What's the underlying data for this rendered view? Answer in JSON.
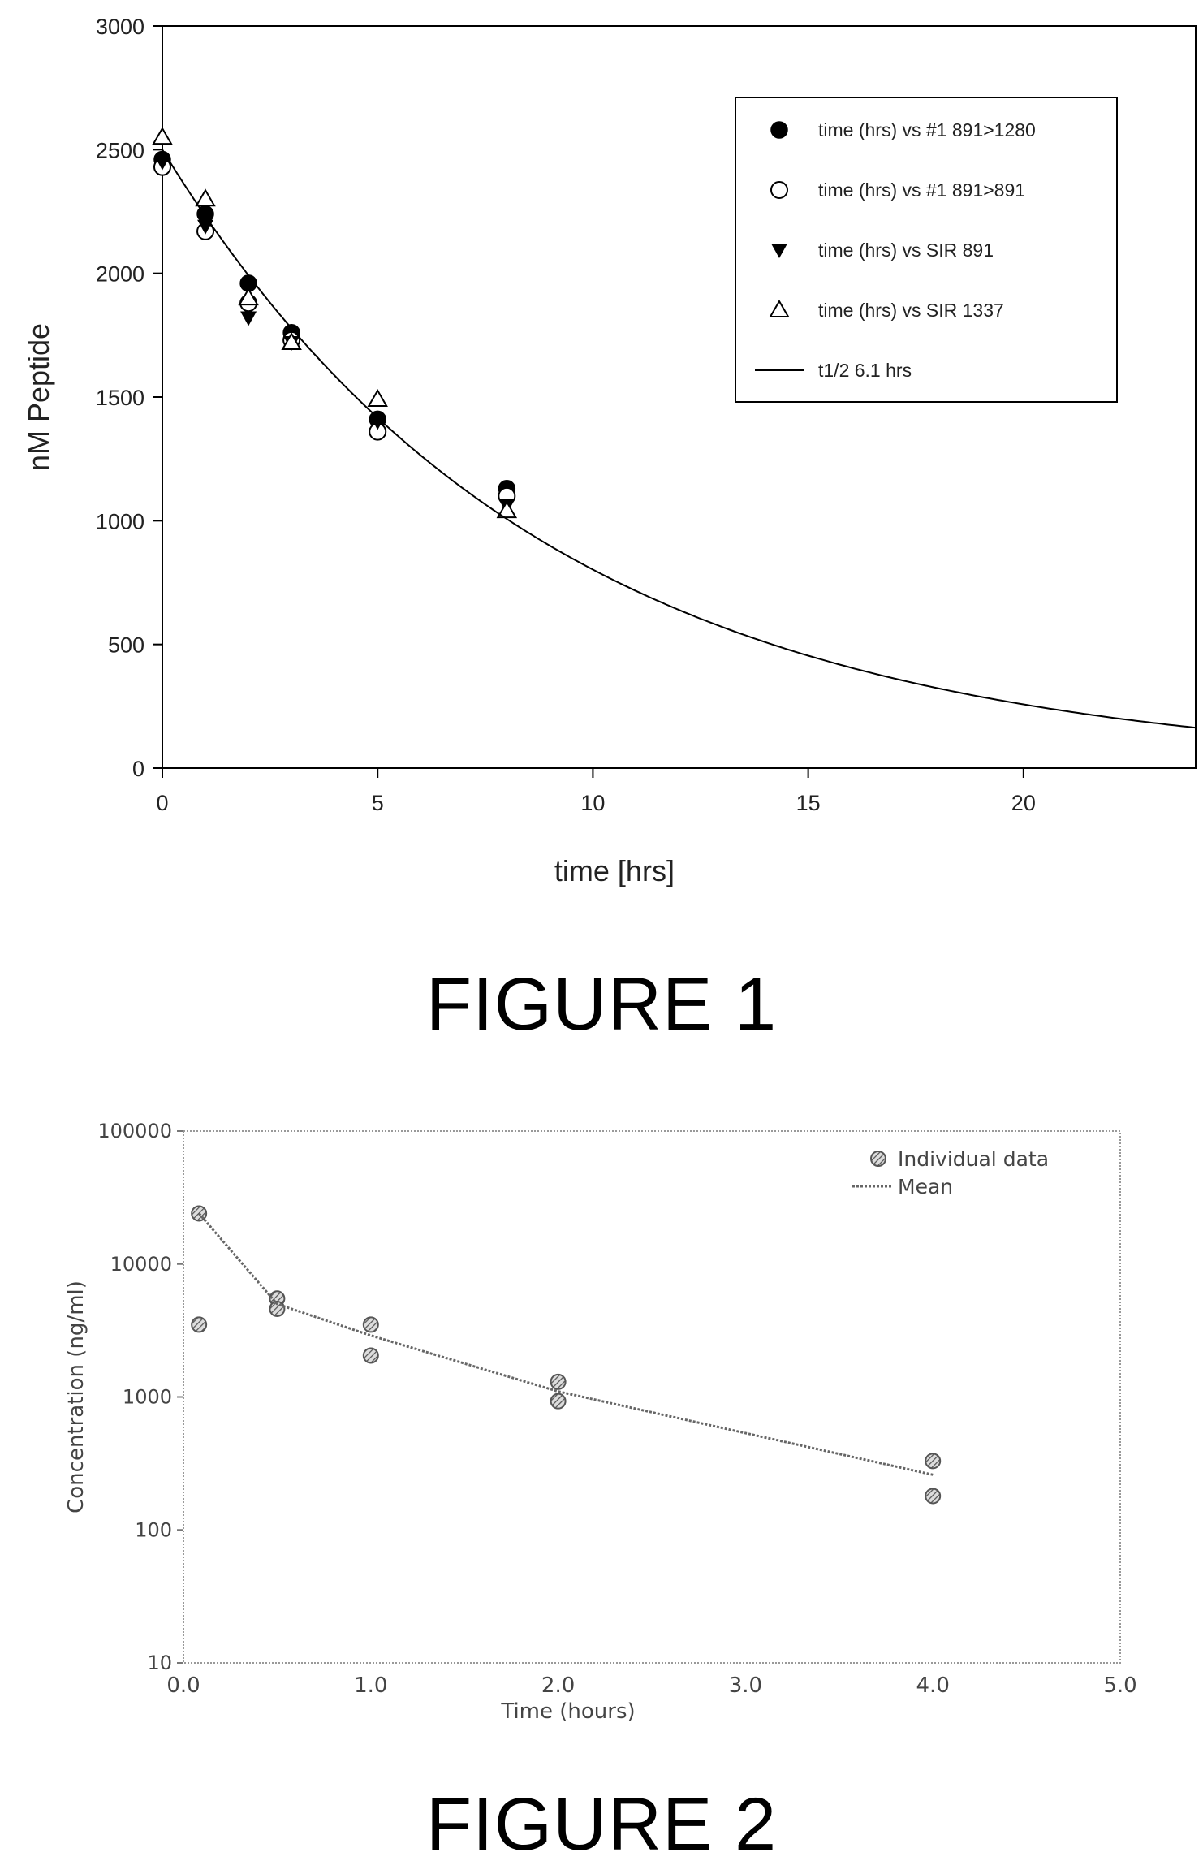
{
  "figures": [
    {
      "caption": "FIGURE 1"
    },
    {
      "caption": "FIGURE 2"
    }
  ],
  "chart_data": [
    {
      "type": "scatter",
      "xlabel": "time [hrs]",
      "ylabel": "nM Peptide",
      "xlim": [
        0,
        24
      ],
      "ylim": [
        0,
        3000
      ],
      "x_ticks": [
        "0",
        "5",
        "10",
        "15",
        "20"
      ],
      "y_ticks": [
        "0",
        "500",
        "1000",
        "1500",
        "2000",
        "2500",
        "3000"
      ],
      "grid": false,
      "legend_position": "top-right",
      "series": [
        {
          "name": "time (hrs) vs #1 891>1280",
          "marker": "filled-circle",
          "x": [
            0,
            1,
            2,
            3,
            5,
            8
          ],
          "y": [
            2460,
            2240,
            1960,
            1760,
            1410,
            1130
          ]
        },
        {
          "name": "time (hrs) vs #1 891>891",
          "marker": "open-circle",
          "x": [
            0,
            1,
            2,
            3,
            5,
            8
          ],
          "y": [
            2430,
            2170,
            1880,
            1730,
            1360,
            1100
          ]
        },
        {
          "name": "time (hrs) vs SIR 891",
          "marker": "filled-triangle-down",
          "x": [
            0,
            1,
            2,
            3,
            5,
            8
          ],
          "y": [
            2450,
            2190,
            1820,
            1720,
            1400,
            1060
          ]
        },
        {
          "name": "time (hrs) vs SIR 1337",
          "marker": "open-triangle-up",
          "x": [
            0,
            1,
            2,
            3,
            5,
            8
          ],
          "y": [
            2550,
            2300,
            1900,
            1720,
            1490,
            1040
          ]
        },
        {
          "name": "t1/2 6.1 hrs",
          "marker": "line",
          "curve": "exp-decay",
          "y0": 2500,
          "half_life": 6.1
        }
      ]
    },
    {
      "type": "scatter",
      "xlabel": "Time (hours)",
      "ylabel": "Concentration (ng/ml)",
      "xlim": [
        0,
        5
      ],
      "ylim": [
        10,
        100000
      ],
      "y_scale": "log",
      "x_ticks": [
        "0.0",
        "1.0",
        "2.0",
        "3.0",
        "4.0",
        "5.0"
      ],
      "y_ticks": [
        "10",
        "100",
        "1000",
        "10000",
        "100000"
      ],
      "grid": false,
      "legend_position": "top-right",
      "series": [
        {
          "name": "Individual data",
          "marker": "hatched-circle",
          "x": [
            0.083,
            0.083,
            0.5,
            0.5,
            1.0,
            1.0,
            2.0,
            2.0,
            4.0,
            4.0
          ],
          "y": [
            24000,
            3500,
            5500,
            4600,
            3500,
            2050,
            1300,
            930,
            330,
            180
          ]
        },
        {
          "name": "Mean",
          "marker": "line",
          "x": [
            0.083,
            0.5,
            1.0,
            2.0,
            4.0
          ],
          "y": [
            24000,
            5000,
            2900,
            1100,
            260
          ]
        }
      ]
    }
  ]
}
